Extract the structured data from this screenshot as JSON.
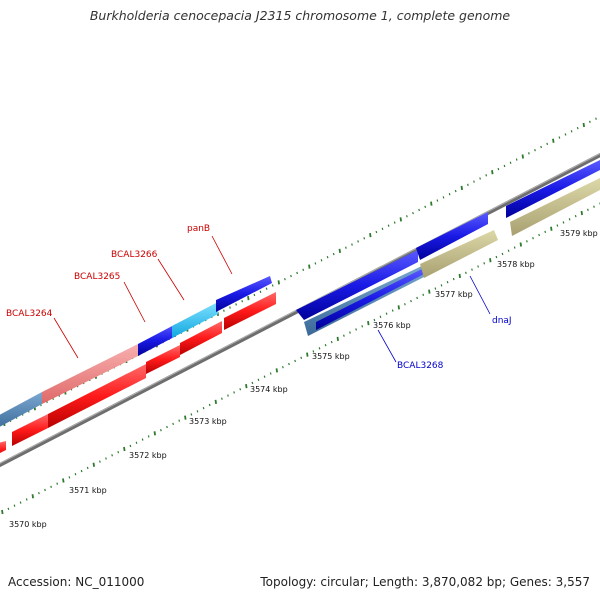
{
  "title": "Burkholderia cenocepacia J2315 chromosome 1, complete genome",
  "footer": {
    "accession": "Accession: NC_011000",
    "summary": "Topology: circular; Length: 3,870,082 bp; Genes: 3,557"
  },
  "colors": {
    "backbone": "#8a8a8a",
    "tick": "#2d7a2d",
    "label_forward": "#cc0000",
    "label_reverse": "#0000cc",
    "forward_gene": "#ff1a1a",
    "reverse_gene": "#1a1ae6",
    "highlight_pink": "#f08080",
    "highlight_cyan": "#20c0f0",
    "steel_blue": "#4a7fb0",
    "olive": "#c8c08a"
  },
  "scale": {
    "labels": [
      "3570 kbp",
      "3571 kbp",
      "3572 kbp",
      "3573 kbp",
      "3574 kbp",
      "3575 kbp",
      "3576 kbp",
      "3577 kbp",
      "3578 kbp",
      "3579 kbp"
    ]
  },
  "gene_labels": {
    "forward": [
      "BCAL3264",
      "BCAL3265",
      "BCAL3266",
      "panB"
    ],
    "reverse": [
      "BCAL3268",
      "dnaJ"
    ]
  }
}
